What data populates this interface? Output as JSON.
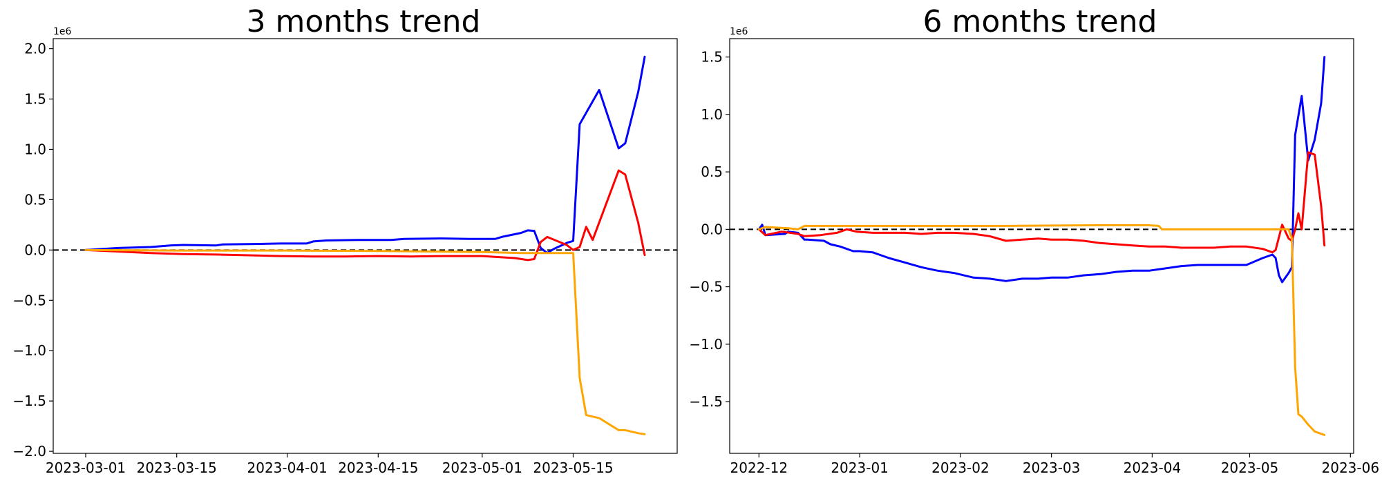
{
  "figure": {
    "background": "#ffffff"
  },
  "chart_data": [
    {
      "type": "line",
      "title": "3 months trend",
      "xlabel": "",
      "ylabel": "",
      "y_offset_label": "1e6",
      "x_type": "date",
      "xlim": [
        "2023-02-24",
        "2023-05-31"
      ],
      "ylim": [
        -2.02,
        2.1
      ],
      "x_ticks": [
        "2023-03-01",
        "2023-03-15",
        "2023-04-01",
        "2023-04-15",
        "2023-05-01",
        "2023-05-15"
      ],
      "y_ticks": [
        -2.0,
        -1.5,
        -1.0,
        -0.5,
        0.0,
        0.5,
        1.0,
        1.5,
        2.0
      ],
      "y_tick_labels": [
        "−2.0",
        "−1.5",
        "−1.0",
        "−0.5",
        "0.0",
        "0.5",
        "1.0",
        "1.5",
        "2.0"
      ],
      "reference_line": {
        "y": 0,
        "style": "dashed",
        "color": "#000000"
      },
      "grid": false,
      "legend": "none",
      "series": [
        {
          "color": "#0000ff",
          "x": [
            "2023-03-01",
            "2023-03-06",
            "2023-03-11",
            "2023-03-14",
            "2023-03-16",
            "2023-03-21",
            "2023-03-22",
            "2023-03-27",
            "2023-03-31",
            "2023-04-04",
            "2023-04-05",
            "2023-04-07",
            "2023-04-12",
            "2023-04-17",
            "2023-04-19",
            "2023-04-25",
            "2023-04-29",
            "2023-05-03",
            "2023-05-04",
            "2023-05-07",
            "2023-05-08",
            "2023-05-09",
            "2023-05-10",
            "2023-05-11",
            "2023-05-12",
            "2023-05-14",
            "2023-05-15",
            "2023-05-16",
            "2023-05-19",
            "2023-05-22",
            "2023-05-23",
            "2023-05-25",
            "2023-05-26"
          ],
          "y": [
            0.0,
            0.02,
            0.03,
            0.045,
            0.05,
            0.045,
            0.055,
            0.06,
            0.065,
            0.065,
            0.085,
            0.095,
            0.1,
            0.1,
            0.11,
            0.115,
            0.11,
            0.11,
            0.13,
            0.17,
            0.195,
            0.19,
            0.02,
            -0.03,
            0.01,
            0.07,
            0.09,
            1.25,
            1.59,
            1.01,
            1.06,
            1.57,
            1.92
          ]
        },
        {
          "color": "#ff0000",
          "x": [
            "2023-03-01",
            "2023-03-06",
            "2023-03-11",
            "2023-03-16",
            "2023-03-21",
            "2023-03-31",
            "2023-04-05",
            "2023-04-10",
            "2023-04-15",
            "2023-04-20",
            "2023-04-25",
            "2023-05-01",
            "2023-05-06",
            "2023-05-08",
            "2023-05-09",
            "2023-05-10",
            "2023-05-11",
            "2023-05-14",
            "2023-05-15",
            "2023-05-16",
            "2023-05-17",
            "2023-05-18",
            "2023-05-22",
            "2023-05-23",
            "2023-05-25",
            "2023-05-26"
          ],
          "y": [
            0.0,
            -0.015,
            -0.03,
            -0.04,
            -0.045,
            -0.06,
            -0.065,
            -0.065,
            -0.06,
            -0.065,
            -0.06,
            -0.06,
            -0.08,
            -0.1,
            -0.09,
            0.08,
            0.13,
            0.05,
            0.0,
            0.03,
            0.23,
            0.1,
            0.79,
            0.75,
            0.27,
            -0.05
          ]
        },
        {
          "color": "#ffa500",
          "x": [
            "2023-03-01",
            "2023-03-15",
            "2023-04-01",
            "2023-04-15",
            "2023-05-01",
            "2023-05-07",
            "2023-05-10",
            "2023-05-14",
            "2023-05-15",
            "2023-05-16",
            "2023-05-17",
            "2023-05-19",
            "2023-05-22",
            "2023-05-23",
            "2023-05-25",
            "2023-05-26"
          ],
          "y": [
            0.0,
            -0.005,
            -0.005,
            -0.01,
            -0.02,
            -0.03,
            -0.03,
            -0.03,
            -0.03,
            -1.27,
            -1.64,
            -1.67,
            -1.79,
            -1.79,
            -1.82,
            -1.83
          ]
        }
      ]
    },
    {
      "type": "line",
      "title": "6 months trend",
      "xlabel": "",
      "ylabel": "",
      "y_offset_label": "1e6",
      "x_type": "date",
      "xlim": [
        "2022-11-22",
        "2023-06-02"
      ],
      "ylim": [
        -1.95,
        1.66
      ],
      "x_ticks": [
        "2022-12-01",
        "2023-01-01",
        "2023-02-01",
        "2023-03-01",
        "2023-04-01",
        "2023-05-01",
        "2023-06-01"
      ],
      "x_tick_labels": [
        "2022-12",
        "2023-01",
        "2023-02",
        "2023-03",
        "2023-04",
        "2023-05",
        "2023-06"
      ],
      "y_ticks": [
        -1.5,
        -1.0,
        -0.5,
        0.0,
        0.5,
        1.0,
        1.5
      ],
      "y_tick_labels": [
        "−1.5",
        "−1.0",
        "−0.5",
        "0.0",
        "0.5",
        "1.0",
        "1.5"
      ],
      "reference_line": {
        "y": 0,
        "style": "dashed",
        "color": "#000000"
      },
      "grid": false,
      "legend": "none",
      "series": [
        {
          "color": "#0000ff",
          "x": [
            "2022-12-01",
            "2022-12-02",
            "2022-12-03",
            "2022-12-09",
            "2022-12-10",
            "2022-12-13",
            "2022-12-15",
            "2022-12-16",
            "2022-12-21",
            "2022-12-23",
            "2022-12-26",
            "2022-12-30",
            "2023-01-01",
            "2023-01-05",
            "2023-01-10",
            "2023-01-15",
            "2023-01-20",
            "2023-01-25",
            "2023-01-30",
            "2023-02-05",
            "2023-02-10",
            "2023-02-15",
            "2023-02-20",
            "2023-02-25",
            "2023-03-01",
            "2023-03-06",
            "2023-03-11",
            "2023-03-16",
            "2023-03-21",
            "2023-03-26",
            "2023-03-31",
            "2023-04-05",
            "2023-04-10",
            "2023-04-15",
            "2023-04-20",
            "2023-04-25",
            "2023-04-30",
            "2023-05-05",
            "2023-05-08",
            "2023-05-09",
            "2023-05-10",
            "2023-05-11",
            "2023-05-13",
            "2023-05-14",
            "2023-05-15",
            "2023-05-17",
            "2023-05-19",
            "2023-05-21",
            "2023-05-23",
            "2023-05-24"
          ],
          "y": [
            0.0,
            0.04,
            -0.05,
            -0.04,
            -0.02,
            -0.03,
            -0.09,
            -0.09,
            -0.1,
            -0.13,
            -0.15,
            -0.19,
            -0.19,
            -0.2,
            -0.25,
            -0.29,
            -0.33,
            -0.36,
            -0.38,
            -0.42,
            -0.43,
            -0.45,
            -0.43,
            -0.43,
            -0.42,
            -0.42,
            -0.4,
            -0.39,
            -0.37,
            -0.36,
            -0.36,
            -0.34,
            -0.32,
            -0.31,
            -0.31,
            -0.31,
            -0.31,
            -0.25,
            -0.22,
            -0.25,
            -0.4,
            -0.46,
            -0.38,
            -0.33,
            0.82,
            1.16,
            0.6,
            0.78,
            1.1,
            1.5
          ]
        },
        {
          "color": "#ff0000",
          "x": [
            "2022-12-01",
            "2022-12-03",
            "2022-12-08",
            "2022-12-13",
            "2022-12-15",
            "2022-12-20",
            "2022-12-25",
            "2022-12-28",
            "2022-12-31",
            "2023-01-05",
            "2023-01-10",
            "2023-01-15",
            "2023-01-20",
            "2023-01-25",
            "2023-01-30",
            "2023-02-05",
            "2023-02-10",
            "2023-02-15",
            "2023-02-20",
            "2023-02-25",
            "2023-03-01",
            "2023-03-06",
            "2023-03-11",
            "2023-03-16",
            "2023-03-21",
            "2023-03-26",
            "2023-03-31",
            "2023-04-05",
            "2023-04-10",
            "2023-04-15",
            "2023-04-20",
            "2023-04-25",
            "2023-04-30",
            "2023-05-05",
            "2023-05-08",
            "2023-05-09",
            "2023-05-11",
            "2023-05-13",
            "2023-05-14",
            "2023-05-15",
            "2023-05-16",
            "2023-05-17",
            "2023-05-19",
            "2023-05-21",
            "2023-05-23",
            "2023-05-24"
          ],
          "y": [
            0.0,
            -0.05,
            -0.02,
            -0.04,
            -0.06,
            -0.05,
            -0.03,
            0.0,
            -0.02,
            -0.03,
            -0.03,
            -0.03,
            -0.04,
            -0.03,
            -0.03,
            -0.04,
            -0.06,
            -0.1,
            -0.09,
            -0.08,
            -0.09,
            -0.09,
            -0.1,
            -0.12,
            -0.13,
            -0.14,
            -0.15,
            -0.15,
            -0.16,
            -0.16,
            -0.16,
            -0.15,
            -0.15,
            -0.17,
            -0.2,
            -0.18,
            0.04,
            -0.08,
            -0.1,
            0.0,
            0.14,
            0.0,
            0.67,
            0.65,
            0.2,
            -0.14
          ]
        },
        {
          "color": "#ffa500",
          "x": [
            "2022-12-01",
            "2022-12-03",
            "2022-12-10",
            "2022-12-13",
            "2022-12-15",
            "2023-01-15",
            "2023-02-15",
            "2023-03-15",
            "2023-03-31",
            "2023-04-03",
            "2023-04-04",
            "2023-04-15",
            "2023-05-01",
            "2023-05-13",
            "2023-05-14",
            "2023-05-15",
            "2023-05-16",
            "2023-05-17",
            "2023-05-19",
            "2023-05-21",
            "2023-05-23",
            "2023-05-24"
          ],
          "y": [
            0.0,
            0.02,
            0.01,
            0.0,
            0.03,
            0.03,
            0.03,
            0.035,
            0.035,
            0.03,
            0.0,
            0.0,
            0.0,
            0.0,
            -0.08,
            -1.2,
            -1.61,
            -1.63,
            -1.7,
            -1.76,
            -1.78,
            -1.79
          ]
        }
      ]
    }
  ]
}
